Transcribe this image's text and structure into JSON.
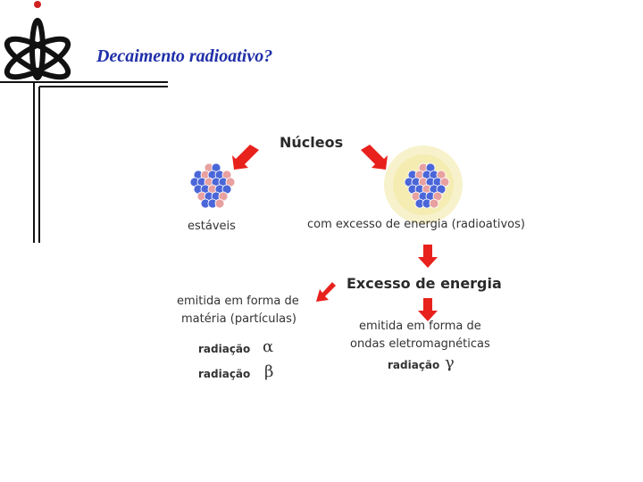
{
  "title": {
    "text": "Decaimento radioativo",
    "mark": "?"
  },
  "logo": {
    "icon": "atom-logo-icon"
  },
  "diagram": {
    "root": "Núcleos",
    "stable": "estáveis",
    "radioactive": "com excesso de energia (radioativos)",
    "excess": "Excesso de energia",
    "matter_line1": "emitida em forma de",
    "matter_line2": "matéria (partículas)",
    "alpha_label": "radiação",
    "alpha_symbol": "α",
    "beta_label": "radiação",
    "beta_symbol": "β",
    "waves_line1": "emitida em forma de",
    "waves_line2": "ondas eletromagnéticas",
    "gamma_label": "radiação",
    "gamma_symbol": "γ"
  },
  "colors": {
    "title": "#1f2fa8",
    "arrow": "#e8211d",
    "proton": "#e8a0a0",
    "neutron": "#4a66d8"
  }
}
